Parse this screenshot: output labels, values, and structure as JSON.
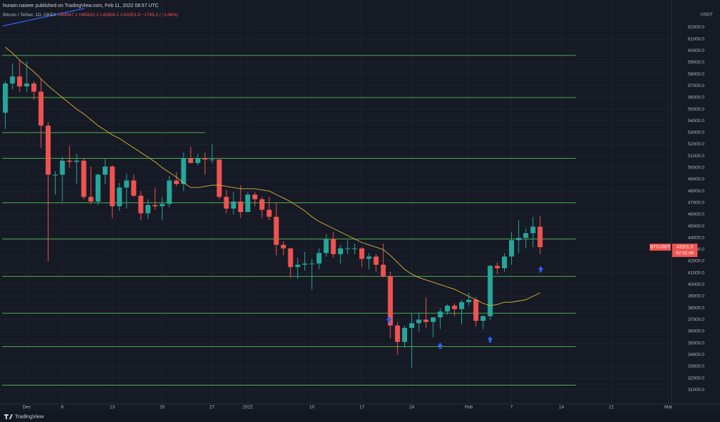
{
  "header": {
    "publisher": "hunain.naseer published on TradingView.com, Feb 11, 2022 08:57 UTC",
    "footer": "TradingView"
  },
  "chart_data": {
    "type": "candlestick",
    "legend": {
      "symbol": "Bitcoin / Tether, 1D, OKEX",
      "open": "O44947.1",
      "high": "H45832.2",
      "low": "L42604.1",
      "close": "C43201.9",
      "change": "−1745.2 (−3.88%)"
    },
    "currency": "USDT",
    "ticker": "BTCUSDT",
    "countdown": "07:02:09",
    "up_color": "#26a69a",
    "down_color": "#ef5350",
    "level_color": "#4caf50",
    "ma_color": "#e0b53a",
    "grid": true,
    "x": [
      -3,
      -2,
      -1,
      0,
      1,
      2,
      3,
      4,
      5,
      6,
      7,
      8,
      9,
      10,
      11,
      12,
      13,
      14,
      15,
      16,
      17,
      18,
      19,
      20,
      21,
      22,
      23,
      24,
      25,
      26,
      27,
      28,
      29,
      30,
      31,
      32,
      33,
      34,
      35,
      36,
      37,
      38,
      39,
      40,
      41,
      42,
      43,
      44,
      45,
      46,
      47,
      48,
      49,
      50,
      51,
      52,
      53,
      54,
      55,
      56,
      57,
      58,
      59,
      60,
      61,
      62,
      63,
      64,
      65,
      66,
      67,
      68,
      69,
      70,
      71,
      72
    ],
    "open": [
      54700,
      57200,
      57800,
      56950,
      57200,
      56500,
      53600,
      49400,
      49400,
      50600,
      50500,
      50600,
      47500,
      47100,
      49400,
      50100,
      46700,
      48300,
      48900,
      47600,
      46100,
      46800,
      46700,
      46900,
      48900,
      48600,
      50800,
      50400,
      50800,
      50700,
      50700,
      47500,
      46500,
      47100,
      46200,
      47700,
      47300,
      46400,
      45800,
      43400,
      43100,
      41500,
      41700,
      41800,
      41800,
      42700,
      43900,
      42600,
      43100,
      43100,
      43100,
      42200,
      42400,
      41700,
      40700,
      36500,
      35100,
      36300,
      36700,
      37000,
      36800,
      37200,
      37700,
      38200,
      37900,
      38500,
      38700,
      36900,
      37300,
      41600,
      41400,
      42400,
      43800,
      44000,
      44400,
      44947.1
    ],
    "high": [
      57400,
      58900,
      59200,
      59100,
      57400,
      57600,
      53900,
      49700,
      50900,
      51900,
      51200,
      50800,
      50100,
      49500,
      50800,
      50200,
      48700,
      49500,
      49400,
      48000,
      47300,
      48300,
      47500,
      49300,
      49600,
      51300,
      51800,
      51200,
      51300,
      52000,
      50700,
      48100,
      47900,
      48500,
      47900,
      47900,
      47500,
      47500,
      47000,
      43700,
      43100,
      42300,
      42800,
      42200,
      43100,
      44300,
      44500,
      43400,
      43800,
      43500,
      43200,
      42700,
      42600,
      43500,
      41100,
      36800,
      36500,
      37500,
      37600,
      38900,
      37200,
      38000,
      38300,
      38400,
      38700,
      39300,
      38900,
      37400,
      41700,
      41900,
      42700,
      44500,
      45500,
      44800,
      45800,
      45832.2
    ],
    "low": [
      53300,
      56700,
      56500,
      56500,
      55800,
      51700,
      42000,
      47700,
      47100,
      50000,
      48600,
      47300,
      46900,
      46800,
      48600,
      45700,
      46300,
      46500,
      47500,
      45500,
      45600,
      46400,
      45500,
      46600,
      48400,
      48000,
      50400,
      50200,
      49400,
      50400,
      47300,
      46100,
      46000,
      45700,
      46200,
      46700,
      45700,
      45500,
      42500,
      42500,
      40600,
      40500,
      41200,
      39600,
      41300,
      42400,
      42300,
      41800,
      42600,
      42600,
      41500,
      41300,
      41100,
      40600,
      35400,
      34000,
      34600,
      32900,
      36000,
      36300,
      35500,
      36200,
      37400,
      37300,
      36600,
      38200,
      36400,
      36200,
      37000,
      40900,
      41100,
      41700,
      42700,
      43100,
      43200,
      42604.1
    ],
    "close": [
      57200,
      57800,
      56950,
      57200,
      56500,
      53600,
      49400,
      49400,
      50600,
      50500,
      50600,
      47500,
      47100,
      49400,
      50100,
      46700,
      48300,
      48900,
      47600,
      46100,
      46800,
      46700,
      46900,
      48900,
      48600,
      50800,
      50400,
      50800,
      50700,
      50700,
      47500,
      46500,
      47100,
      46200,
      47700,
      47300,
      46400,
      45800,
      43400,
      43100,
      41500,
      41700,
      41800,
      41800,
      42700,
      43900,
      42600,
      43100,
      43100,
      43100,
      42200,
      42400,
      41700,
      40700,
      36500,
      35100,
      36300,
      36700,
      37000,
      36800,
      37200,
      37700,
      38200,
      37900,
      38500,
      38700,
      36900,
      37300,
      41600,
      41400,
      42400,
      43800,
      44000,
      44400,
      44947.1,
      43201.9
    ],
    "ma": [
      60300,
      59800,
      59200,
      58700,
      58200,
      57600,
      57000,
      56500,
      56000,
      55500,
      55000,
      54600,
      54100,
      53600,
      53200,
      52800,
      52500,
      52100,
      51700,
      51300,
      50900,
      50500,
      50000,
      49600,
      49200,
      48700,
      48300,
      48300,
      48400,
      48500,
      48500,
      48400,
      48300,
      48200,
      48200,
      48200,
      48100,
      48000,
      47700,
      47400,
      47100,
      46700,
      46300,
      45800,
      45400,
      45100,
      44800,
      44500,
      44200,
      43900,
      43600,
      43400,
      43200,
      43000,
      42500,
      41900,
      41300,
      40900,
      40600,
      40400,
      40200,
      40000,
      39800,
      39600,
      39300,
      39000,
      38700,
      38400,
      38200,
      38300,
      38500,
      38500,
      38600,
      38700,
      39000,
      39300
    ],
    "levels": [
      {
        "value": 59600,
        "x_end": 77
      },
      {
        "value": 56000,
        "x_end": 77
      },
      {
        "value": 53000,
        "x_end": 25
      },
      {
        "value": 50800,
        "x_end": 77
      },
      {
        "value": 47000,
        "x_end": 77
      },
      {
        "value": 43900,
        "x_end": 77
      },
      {
        "value": 40700,
        "x_end": 77
      },
      {
        "value": 37550,
        "x_end": 77
      },
      {
        "value": 34700,
        "x_end": 77
      },
      {
        "value": 31400,
        "x_end": 77
      }
    ],
    "xlim": [
      -3.75,
      90.43
    ],
    "ylim": [
      29810,
      64340
    ],
    "xticks": [
      {
        "value": 0,
        "label": "Dec"
      },
      {
        "value": 5,
        "label": "6"
      },
      {
        "value": 12,
        "label": "13"
      },
      {
        "value": 19,
        "label": "20"
      },
      {
        "value": 26,
        "label": "27"
      },
      {
        "value": 31,
        "label": "2022"
      },
      {
        "value": 40,
        "label": "10"
      },
      {
        "value": 47,
        "label": "17"
      },
      {
        "value": 54,
        "label": "24"
      },
      {
        "value": 62,
        "label": "Feb"
      },
      {
        "value": 68,
        "label": "7"
      },
      {
        "value": 75,
        "label": "14"
      },
      {
        "value": 82,
        "label": "21"
      },
      {
        "value": 90,
        "label": "Mar"
      }
    ],
    "yticks": [
      {
        "value": 62000,
        "label": "62000.0"
      },
      {
        "value": 61000,
        "label": "61000.0"
      },
      {
        "value": 60000,
        "label": "60000.0"
      },
      {
        "value": 59000,
        "label": "59000.0"
      },
      {
        "value": 58000,
        "label": "58000.0"
      },
      {
        "value": 57000,
        "label": "57000.0"
      },
      {
        "value": 56000,
        "label": "56000.0"
      },
      {
        "value": 55000,
        "label": "55000.0"
      },
      {
        "value": 54000,
        "label": "54000.0"
      },
      {
        "value": 53000,
        "label": "53000.0"
      },
      {
        "value": 52000,
        "label": "52000.0"
      },
      {
        "value": 51000,
        "label": "51000.0"
      },
      {
        "value": 50000,
        "label": "50000.0"
      },
      {
        "value": 49000,
        "label": "49000.0"
      },
      {
        "value": 48000,
        "label": "48000.0"
      },
      {
        "value": 47000,
        "label": "47000.0"
      },
      {
        "value": 46000,
        "label": "46000.0"
      },
      {
        "value": 45000,
        "label": "45000.0"
      },
      {
        "value": 44000,
        "label": "44000.0"
      },
      {
        "value": 43000,
        "label": "43000.0"
      },
      {
        "value": 42000,
        "label": "42000.0"
      },
      {
        "value": 41000,
        "label": "41000.0"
      },
      {
        "value": 40000,
        "label": "40000.0"
      },
      {
        "value": 39000,
        "label": "39000.0"
      },
      {
        "value": 38000,
        "label": "38000.0"
      },
      {
        "value": 37000,
        "label": "37000.0"
      },
      {
        "value": 36000,
        "label": "36000.0"
      },
      {
        "value": 35000,
        "label": "35000.0"
      },
      {
        "value": 34000,
        "label": "34000.0"
      },
      {
        "value": 33000,
        "label": "33000.0"
      },
      {
        "value": 32000,
        "label": "32000.0"
      },
      {
        "value": 31000,
        "label": "31000.0"
      }
    ]
  }
}
